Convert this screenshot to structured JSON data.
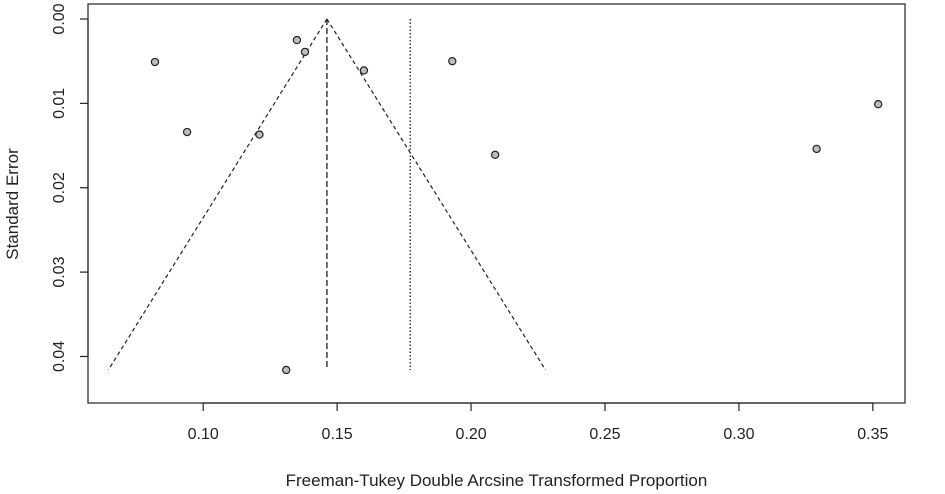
{
  "chart_data": {
    "type": "scatter",
    "title": "",
    "xlabel": "Freeman-Tukey Double Arcsine Transformed Proportion",
    "ylabel": "Standard Error",
    "xlim": [
      0.057,
      0.362
    ],
    "ylim": [
      0.0,
      0.0435
    ],
    "y_reversed": true,
    "x_ticks": [
      0.1,
      0.15,
      0.2,
      0.25,
      0.3,
      0.35
    ],
    "x_tick_labels": [
      "0.10",
      "0.15",
      "0.20",
      "0.25",
      "0.30",
      "0.35"
    ],
    "y_ticks": [
      0.0,
      0.01,
      0.02,
      0.03,
      0.04
    ],
    "y_tick_labels": [
      "0.00",
      "0.01",
      "0.02",
      "0.03",
      "0.04"
    ],
    "grid": false,
    "points": [
      {
        "x": 0.082,
        "y": 0.0051
      },
      {
        "x": 0.094,
        "y": 0.0134
      },
      {
        "x": 0.121,
        "y": 0.0137
      },
      {
        "x": 0.131,
        "y": 0.0416
      },
      {
        "x": 0.135,
        "y": 0.0025
      },
      {
        "x": 0.138,
        "y": 0.0039
      },
      {
        "x": 0.16,
        "y": 0.0061
      },
      {
        "x": 0.193,
        "y": 0.005
      },
      {
        "x": 0.209,
        "y": 0.0161
      },
      {
        "x": 0.329,
        "y": 0.0154
      },
      {
        "x": 0.352,
        "y": 0.0101
      }
    ],
    "funnel": {
      "center": 0.1462,
      "se_max": 0.0416,
      "left_x_at_se_max": 0.0646,
      "right_x_at_se_max": 0.2278
    },
    "fixed_effect_line": {
      "x": 0.1462,
      "style": "dashed"
    },
    "random_effects_line": {
      "x": 0.1773,
      "style": "dotted"
    },
    "point_color": "#bdbdbd",
    "line_color": "#222222"
  }
}
